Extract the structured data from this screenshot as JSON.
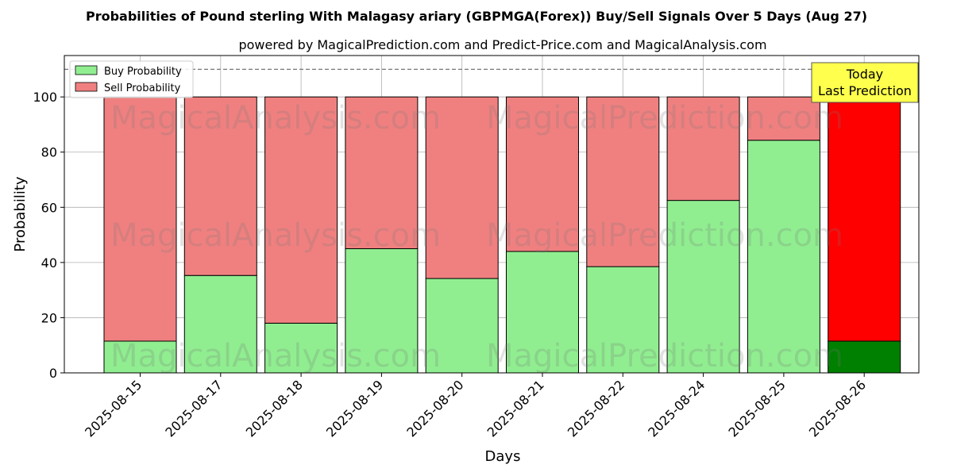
{
  "chart_data": {
    "type": "bar",
    "stacked": true,
    "title": "Probabilities of Pound sterling With Malagasy ariary (GBPMGA(Forex)) Buy/Sell Signals Over 5 Days (Aug 27)",
    "subtitle": "powered by MagicalPrediction.com and Predict-Price.com and MagicalAnalysis.com",
    "xlabel": "Days",
    "ylabel": "Probability",
    "ylim": [
      0,
      115
    ],
    "yticks": [
      0,
      20,
      40,
      60,
      80,
      100
    ],
    "reference_line": 110,
    "grid": true,
    "legend_position": "top-left",
    "categories": [
      "2025-08-15",
      "2025-08-17",
      "2025-08-18",
      "2025-08-19",
      "2025-08-20",
      "2025-08-21",
      "2025-08-22",
      "2025-08-24",
      "2025-08-25",
      "2025-08-26"
    ],
    "series": [
      {
        "name": "Buy Probability",
        "color": "#90ee90",
        "highlight_color": "#008000",
        "values": [
          11.5,
          35.3,
          18.0,
          45.0,
          34.2,
          44.0,
          38.5,
          62.5,
          84.3,
          11.5
        ]
      },
      {
        "name": "Sell Probability",
        "color": "#f08080",
        "highlight_color": "#ff0000",
        "values": [
          88.5,
          64.7,
          82.0,
          55.0,
          65.8,
          56.0,
          61.5,
          37.5,
          15.7,
          88.5
        ]
      }
    ],
    "highlight_index": 9,
    "annotation": {
      "lines": [
        "Today",
        "Last Prediction"
      ],
      "bg": "#ffff4d"
    },
    "watermarks": [
      "MagicalAnalysis.com",
      "MagicalPrediction.com"
    ]
  }
}
